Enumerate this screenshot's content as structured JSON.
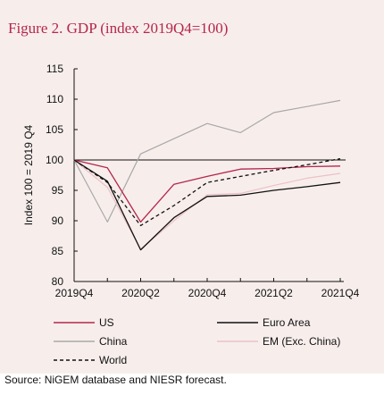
{
  "figure": {
    "title": "Figure 2. GDP (index 2019Q4=100)",
    "source": "Source: NiGEM database and NIESR forecast."
  },
  "colors": {
    "background": "#f7eeec",
    "title": "#b5264a"
  },
  "chart_data": {
    "type": "line",
    "title": "Figure 2. GDP (index 2019Q4=100)",
    "ylabel": "Index 100 = 2019 Q4",
    "xlabel": "",
    "ylim": [
      80,
      115
    ],
    "yticks": [
      80,
      85,
      90,
      95,
      100,
      105,
      110,
      115
    ],
    "x": [
      "2019Q4",
      "2020Q1",
      "2020Q2",
      "2020Q3",
      "2020Q4",
      "2021Q1",
      "2021Q2",
      "2021Q3",
      "2021Q4"
    ],
    "xticklabels": [
      "2019Q4",
      "2020Q2",
      "2020Q4",
      "2021Q2",
      "2021Q4"
    ],
    "reference_line": 100,
    "legend_position": "bottom",
    "series": [
      {
        "name": "US",
        "color": "#b5264a",
        "dash": "solid",
        "values": [
          100,
          98.7,
          89.8,
          96.0,
          97.3,
          98.5,
          98.6,
          98.9,
          99.0
        ]
      },
      {
        "name": "Euro Area",
        "color": "#111111",
        "dash": "solid",
        "values": [
          100,
          96.5,
          85.2,
          90.5,
          94.0,
          94.2,
          95.0,
          95.6,
          96.3
        ]
      },
      {
        "name": "China",
        "color": "#a8a8a8",
        "dash": "solid",
        "values": [
          100,
          89.8,
          101.0,
          103.5,
          106.0,
          104.5,
          107.8,
          108.8,
          109.8
        ]
      },
      {
        "name": "EM (Exc. China)",
        "color": "#ecc0c6",
        "dash": "solid",
        "values": [
          100,
          95.5,
          85.3,
          90.0,
          94.3,
          94.5,
          95.8,
          97.0,
          97.8
        ]
      },
      {
        "name": "World",
        "color": "#111111",
        "dash": "dashed",
        "values": [
          100,
          96.3,
          89.2,
          92.5,
          96.3,
          97.3,
          98.3,
          99.2,
          100.2
        ]
      }
    ]
  }
}
